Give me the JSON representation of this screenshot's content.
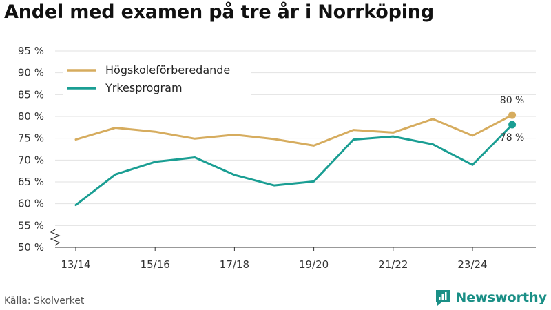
{
  "title": "Andel med examen på tre år i Norrköping",
  "source": "Källa: Skolverket",
  "brand": {
    "name": "Newsworthy",
    "icon": "newsworthy-logo-icon"
  },
  "colors": {
    "series_1": "#d6ac5e",
    "series_2": "#1a9e93",
    "grid": "#e2e2e2",
    "axis": "#333333"
  },
  "chart_data": {
    "type": "line",
    "title": "Andel med examen på tre år i Norrköping",
    "xlabel": "",
    "ylabel": "",
    "x": [
      "13/14",
      "14/15",
      "15/16",
      "16/17",
      "17/18",
      "18/19",
      "19/20",
      "20/21",
      "21/22",
      "22/23",
      "23/24",
      "24/25"
    ],
    "x_ticks": [
      "13/14",
      "15/16",
      "17/18",
      "19/20",
      "21/22",
      "23/24"
    ],
    "y_ticks": [
      "50 %",
      "55 %",
      "60 %",
      "65 %",
      "70 %",
      "75 %",
      "80 %",
      "85 %",
      "90 %",
      "95 %"
    ],
    "ylim": [
      50,
      95
    ],
    "y_axis_break": true,
    "grid": true,
    "legend_position": "top-left",
    "series": [
      {
        "name": "Högskoleförberedande",
        "values": [
          74.7,
          77.4,
          76.5,
          74.9,
          75.8,
          74.8,
          73.3,
          76.9,
          76.3,
          79.4,
          75.6,
          80.3
        ],
        "end_label": "80 %"
      },
      {
        "name": "Yrkesprogram",
        "values": [
          59.7,
          66.7,
          69.6,
          70.6,
          66.6,
          64.2,
          65.1,
          74.7,
          75.4,
          73.6,
          68.9,
          78.1
        ],
        "end_label": "78 %"
      }
    ]
  }
}
